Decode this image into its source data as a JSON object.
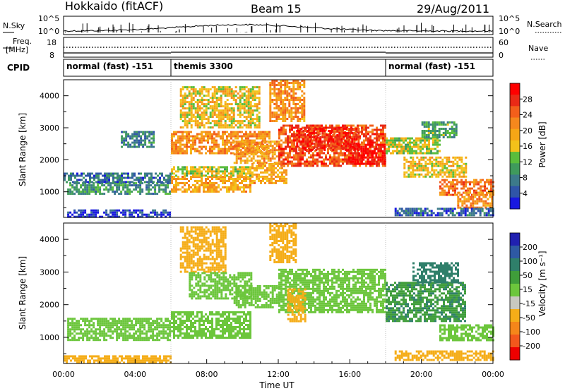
{
  "header": {
    "station": "Hokkaido (fitACF)",
    "beam": "Beam 15",
    "date": "29/Aug/2011"
  },
  "aux_panels": {
    "nsky_label": "N.Sky",
    "nsky_ticks": [
      "10^5",
      "10^0"
    ],
    "nsearch_label": "N.Search",
    "nsearch_ticks": [
      "10^5",
      "10^0"
    ],
    "freq_label_line1": "Freq.",
    "freq_label_line2": "[MHz]",
    "freq_ticks": [
      "18",
      "8"
    ],
    "nave_label": "Nave",
    "nave_ticks": [
      "60",
      "0"
    ],
    "cpid_label": "CPID",
    "cpid_modes": [
      {
        "name": "normal (fast) -151",
        "start_hour": 0,
        "end_hour": 6
      },
      {
        "name": "themis 3300",
        "start_hour": 6,
        "end_hour": 18
      },
      {
        "name": "normal (fast) -151",
        "start_hour": 18,
        "end_hour": 24
      }
    ]
  },
  "colors": {
    "power": [
      "#1818e0",
      "#2f55a8",
      "#3c7a8a",
      "#3f9a5c",
      "#5abd3c",
      "#f3c21a",
      "#f6a616",
      "#f5881d",
      "#f35f1b",
      "#ea2a16",
      "#ff0000"
    ],
    "velocity": [
      "#2020b0",
      "#2e59a3",
      "#2f7f6a",
      "#3f9d3a",
      "#6cc63c",
      "#c8c8c0",
      "#f5ad18",
      "#f5861a",
      "#f3571c",
      "#ee0000"
    ]
  },
  "chart_data": [
    {
      "type": "heatmap",
      "panel": "power",
      "ylabel": "Slant Range [km]",
      "yticks": [
        "1000",
        "2000",
        "3000",
        "4000"
      ],
      "ylim": [
        200,
        4500
      ],
      "xlim_hours": [
        0,
        24
      ],
      "colorbar_label": "Power [dB]",
      "colorbar_ticks": [
        "4",
        "8",
        "12",
        "16",
        "20",
        "24",
        "28"
      ],
      "colorbar_range": [
        0,
        30
      ],
      "regions": [
        {
          "t0": 0.2,
          "t1": 6.0,
          "r0": 950,
          "r1": 1300,
          "level": 9
        },
        {
          "t0": 0.0,
          "t1": 6.0,
          "r0": 1300,
          "r1": 1600,
          "level": 6
        },
        {
          "t0": 3.2,
          "t1": 5.0,
          "r0": 2400,
          "r1": 2900,
          "level": 7
        },
        {
          "t0": 0.2,
          "t1": 6.0,
          "r0": 250,
          "r1": 450,
          "level": 3
        },
        {
          "t0": 6.0,
          "t1": 10.5,
          "r0": 1000,
          "r1": 1500,
          "level": 18
        },
        {
          "t0": 6.0,
          "t1": 10.5,
          "r0": 1500,
          "r1": 1800,
          "level": 14
        },
        {
          "t0": 6.0,
          "t1": 11.5,
          "r0": 2200,
          "r1": 2900,
          "level": 20
        },
        {
          "t0": 6.5,
          "t1": 11.0,
          "r0": 3000,
          "r1": 4300,
          "level": 16
        },
        {
          "t0": 9.5,
          "t1": 12.0,
          "r0": 1900,
          "r1": 2600,
          "level": 19
        },
        {
          "t0": 10.5,
          "t1": 12.5,
          "r0": 1300,
          "r1": 1900,
          "level": 18
        },
        {
          "t0": 12.0,
          "t1": 18.0,
          "r0": 1800,
          "r1": 3100,
          "level": 24
        },
        {
          "t0": 13.0,
          "t1": 16.5,
          "r0": 2300,
          "r1": 3000,
          "level": 26
        },
        {
          "t0": 16.0,
          "t1": 18.0,
          "r0": 1900,
          "r1": 2500,
          "level": 29
        },
        {
          "t0": 11.5,
          "t1": 13.5,
          "r0": 3200,
          "r1": 4500,
          "level": 20
        },
        {
          "t0": 18.0,
          "t1": 21.0,
          "r0": 2200,
          "r1": 2700,
          "level": 14
        },
        {
          "t0": 19.0,
          "t1": 22.5,
          "r0": 1500,
          "r1": 2100,
          "level": 16
        },
        {
          "t0": 21.0,
          "t1": 24.0,
          "r0": 900,
          "r1": 1400,
          "level": 22
        },
        {
          "t0": 22.0,
          "t1": 24.0,
          "r0": 500,
          "r1": 1000,
          "level": 20
        },
        {
          "t0": 20.0,
          "t1": 22.0,
          "r0": 2700,
          "r1": 3200,
          "level": 10
        },
        {
          "t0": 18.5,
          "t1": 24.0,
          "r0": 250,
          "r1": 500,
          "level": 5
        }
      ]
    },
    {
      "type": "heatmap",
      "panel": "velocity",
      "ylabel": "Slant Range [km]",
      "yticks": [
        "1000",
        "2000",
        "3000",
        "4000"
      ],
      "ylim": [
        200,
        4500
      ],
      "xlim_hours": [
        0,
        24
      ],
      "xlabel": "Time UT",
      "xticks": [
        "00:00",
        "04:00",
        "08:00",
        "12:00",
        "16:00",
        "20:00",
        "00:00"
      ],
      "colorbar_label": "Velocity [m s⁻¹]",
      "colorbar_ticks": [
        "200",
        "100",
        "50",
        "15",
        "-15",
        "-50",
        "-100",
        "-200"
      ],
      "colorbar_range": [
        -250,
        250
      ],
      "regions": [
        {
          "t0": 0.2,
          "t1": 6.0,
          "r0": 950,
          "r1": 1600,
          "level": 0
        },
        {
          "t0": 0.0,
          "t1": 6.0,
          "r0": 250,
          "r1": 450,
          "level": -40
        },
        {
          "t0": 6.0,
          "t1": 10.5,
          "r0": 1000,
          "r1": 1800,
          "level": 0
        },
        {
          "t0": 6.5,
          "t1": 9.0,
          "r0": 3000,
          "r1": 4400,
          "level": -50
        },
        {
          "t0": 7.0,
          "t1": 10.5,
          "r0": 2200,
          "r1": 3000,
          "level": 0
        },
        {
          "t0": 9.5,
          "t1": 12.0,
          "r0": 1900,
          "r1": 2600,
          "level": 0
        },
        {
          "t0": 12.0,
          "t1": 18.0,
          "r0": 1800,
          "r1": 3100,
          "level": 0
        },
        {
          "t0": 12.5,
          "t1": 13.5,
          "r0": 1500,
          "r1": 2500,
          "level": -50
        },
        {
          "t0": 11.5,
          "t1": 13.0,
          "r0": 3300,
          "r1": 4500,
          "level": -50
        },
        {
          "t0": 18.0,
          "t1": 22.5,
          "r0": 1500,
          "r1": 2700,
          "level": 30
        },
        {
          "t0": 19.5,
          "t1": 22.0,
          "r0": 2700,
          "r1": 3300,
          "level": 40
        },
        {
          "t0": 21.0,
          "t1": 24.0,
          "r0": 900,
          "r1": 1400,
          "level": 0
        },
        {
          "t0": 18.5,
          "t1": 24.0,
          "r0": 300,
          "r1": 600,
          "level": -60
        }
      ]
    }
  ]
}
